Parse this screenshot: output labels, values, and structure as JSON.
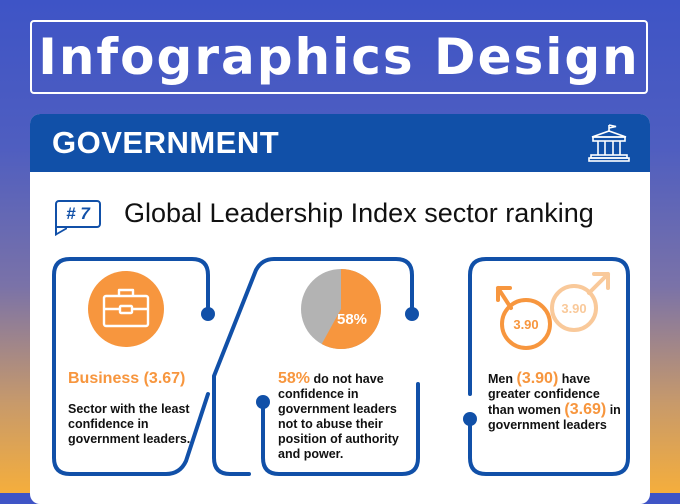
{
  "page": {
    "title": "Infographics Design"
  },
  "card": {
    "header": "GOVERNMENT",
    "header_icon": "government-building-icon",
    "rank": "# 7",
    "section_title": "Global Leadership Index sector ranking"
  },
  "panels": [
    {
      "icon": "briefcase-icon",
      "heading": "Business (3.67)",
      "body": "Sector with the least confidence in government leaders."
    },
    {
      "icon": "pie-chart-icon",
      "pie_label": "58%",
      "pie_fraction": 0.58,
      "highlight": "58%",
      "body": "do not have confidence in government leaders not to abuse their position of authority and power."
    },
    {
      "icon": "gender-symbols-icon",
      "male_value_front": "3.90",
      "male_value_back": "3.90",
      "line1_prefix": "Men ",
      "line1_value": "(3.90)",
      "line1_suffix": " have",
      "line2_prefix": "greater confidence than women ",
      "line2_value": "(3.69)",
      "line3": "in government leaders"
    }
  ],
  "colors": {
    "accent_blue": "#1150a8",
    "accent_orange": "#f7963e",
    "light_orange": "#f9c99a",
    "pie_grey": "#b3b3b3"
  }
}
